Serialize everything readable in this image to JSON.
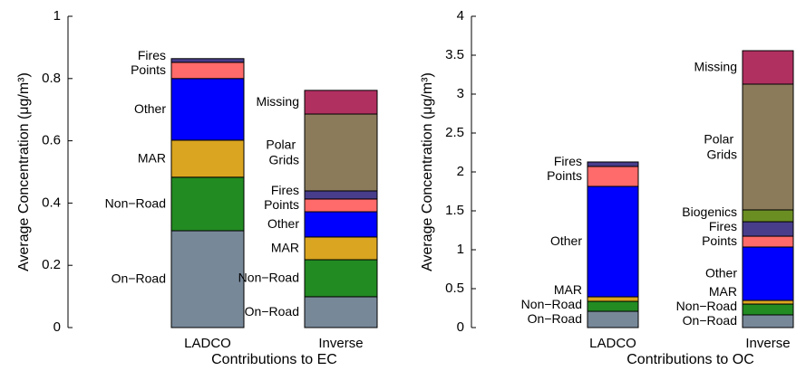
{
  "chart_data": [
    {
      "type": "stacked_bar",
      "xlabel": "Contributions to EC",
      "ylabel": "Average Concentration (μg/m³)",
      "categories": [
        "LADCO",
        "Inverse"
      ],
      "ylim": [
        0,
        1
      ],
      "yticks": [
        0,
        0.2,
        0.4,
        0.6,
        0.8,
        1
      ],
      "series": [
        {
          "name": "On−Road",
          "color": "#778899",
          "values": [
            0.311,
            0.099
          ]
        },
        {
          "name": "Non−Road",
          "color": "#228b22",
          "values": [
            0.172,
            0.119
          ]
        },
        {
          "name": "MAR",
          "color": "#daa520",
          "values": [
            0.119,
            0.073
          ]
        },
        {
          "name": "Other",
          "color": "#0000ff",
          "values": [
            0.198,
            0.081
          ]
        },
        {
          "name": "Points",
          "color": "#ff6a6a",
          "values": [
            0.052,
            0.041
          ]
        },
        {
          "name": "Fires",
          "color": "#483d8b",
          "values": [
            0.012,
            0.026
          ]
        },
        {
          "name": "Polar Grids",
          "color": "#8b7b5b",
          "values": [
            null,
            0.247
          ]
        },
        {
          "name": "Missing",
          "color": "#b03060",
          "values": [
            null,
            0.076
          ]
        }
      ]
    },
    {
      "type": "stacked_bar",
      "xlabel": "Contributions to OC",
      "ylabel": "Average Concentration (μg/m³)",
      "categories": [
        "LADCO",
        "Inverse"
      ],
      "ylim": [
        0,
        4
      ],
      "yticks": [
        0,
        0.5,
        1,
        1.5,
        2,
        2.5,
        3,
        3.5,
        4
      ],
      "series": [
        {
          "name": "On−Road",
          "color": "#778899",
          "values": [
            0.209,
            0.163
          ]
        },
        {
          "name": "Non−Road",
          "color": "#228b22",
          "values": [
            0.128,
            0.139
          ]
        },
        {
          "name": "MAR",
          "color": "#daa520",
          "values": [
            0.058,
            0.047
          ]
        },
        {
          "name": "Other",
          "color": "#0000ff",
          "values": [
            1.419,
            0.686
          ]
        },
        {
          "name": "Points",
          "color": "#ff6a6a",
          "values": [
            0.256,
            0.139
          ]
        },
        {
          "name": "Fires",
          "color": "#483d8b",
          "values": [
            0.058,
            0.186
          ]
        },
        {
          "name": "Biogenics",
          "color": "#6b8e23",
          "values": [
            null,
            0.152
          ]
        },
        {
          "name": "Polar Grids",
          "color": "#8b7b5b",
          "values": [
            null,
            1.616
          ]
        },
        {
          "name": "Missing",
          "color": "#b03060",
          "values": [
            null,
            0.43
          ]
        }
      ]
    }
  ]
}
